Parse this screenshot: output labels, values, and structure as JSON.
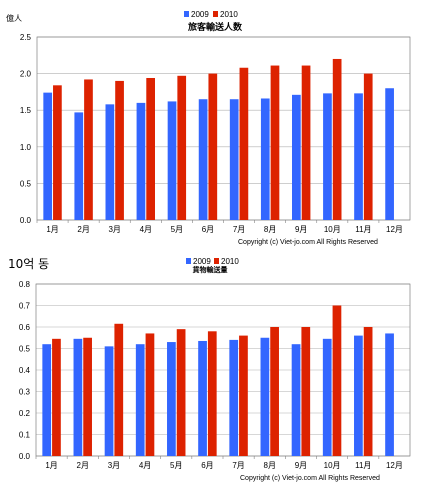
{
  "chart_data": [
    {
      "type": "bar",
      "title": "旅客輸送人数",
      "unit_label": "億人",
      "categories": [
        "1月",
        "2月",
        "3月",
        "4月",
        "5月",
        "6月",
        "7月",
        "8月",
        "9月",
        "10月",
        "11月",
        "12月"
      ],
      "series": [
        {
          "name": "2009",
          "color": "#3366ff",
          "values": [
            1.74,
            1.47,
            1.58,
            1.6,
            1.62,
            1.65,
            1.65,
            1.66,
            1.71,
            1.73,
            1.73,
            1.8
          ]
        },
        {
          "name": "2010",
          "color": "#dd2200",
          "values": [
            1.84,
            1.92,
            1.9,
            1.94,
            1.97,
            2.0,
            2.08,
            2.11,
            2.11,
            2.2,
            2.0,
            null
          ]
        }
      ],
      "ylim": [
        0,
        2.5
      ],
      "yticks": [
        "0.0",
        "0.5",
        "1.0",
        "1.5",
        "2.0",
        "2.5"
      ],
      "grid": true,
      "legend": "top-center",
      "copyright": "Copyright (c) Viet-jo.com All Rights Reserved"
    },
    {
      "type": "bar",
      "title": "貨物輸送量",
      "unit_label": "10억 동",
      "categories": [
        "1月",
        "2月",
        "3月",
        "4月",
        "5月",
        "6月",
        "7月",
        "8月",
        "9月",
        "10月",
        "11月",
        "12月"
      ],
      "series": [
        {
          "name": "2009",
          "color": "#3366ff",
          "values": [
            0.52,
            0.545,
            0.51,
            0.52,
            0.53,
            0.535,
            0.54,
            0.55,
            0.52,
            0.545,
            0.56,
            0.57
          ]
        },
        {
          "name": "2010",
          "color": "#dd2200",
          "values": [
            0.545,
            0.55,
            0.615,
            0.57,
            0.59,
            0.58,
            0.56,
            0.6,
            0.6,
            0.7,
            0.6,
            null
          ]
        }
      ],
      "ylim": [
        0,
        0.8
      ],
      "yticks": [
        "0.0",
        "0.1",
        "0.2",
        "0.3",
        "0.4",
        "0.5",
        "0.6",
        "0.7",
        "0.8"
      ],
      "grid": true,
      "legend": "top-center",
      "copyright": "Copyright (c) Viet-jo.com All Rights Reserved"
    }
  ]
}
